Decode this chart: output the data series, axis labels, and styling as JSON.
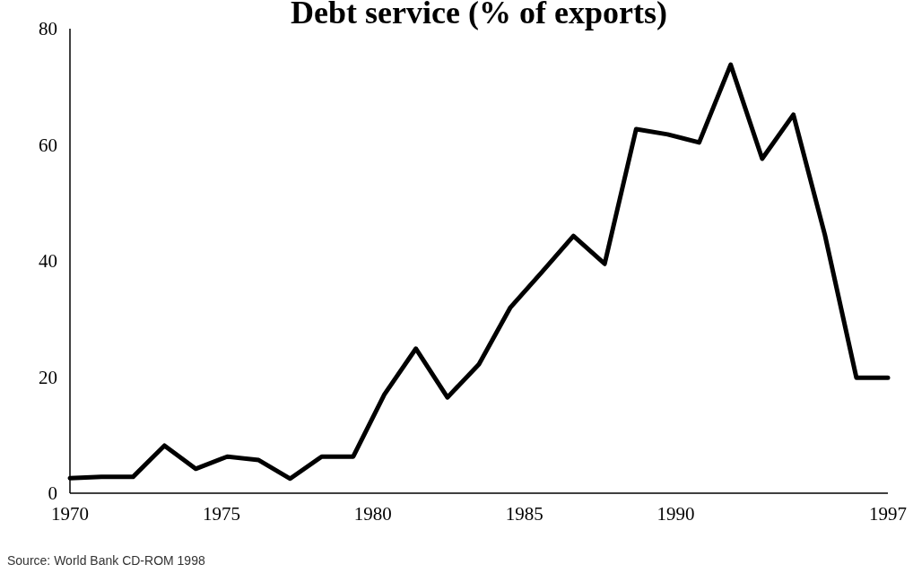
{
  "chart_data": {
    "type": "line",
    "title": "Debt service (% of exports)",
    "x": [
      1970,
      1971.04,
      1972.08,
      1973.12,
      1974.15,
      1975.19,
      1976.23,
      1977.27,
      1978.31,
      1979.35,
      1980.38,
      1981.42,
      1982.46,
      1983.5,
      1984.54,
      1985.58,
      1986.62,
      1987.65,
      1988.69,
      1989.73,
      1990.77,
      1991.81,
      1992.85,
      1993.88,
      1994.92,
      1995.96,
      1997
    ],
    "series": [
      {
        "color": "#000000",
        "values": [
          2.6,
          2.8,
          2.8,
          8.2,
          4.2,
          6.3,
          5.7,
          2.5,
          6.3,
          6.3,
          17.0,
          24.9,
          16.5,
          22.2,
          32.0,
          38.1,
          44.3,
          39.5,
          62.7,
          61.8,
          60.4,
          73.8,
          57.6,
          65.2,
          44.5,
          19.9,
          19.9
        ]
      }
    ],
    "xlim": [
      1970,
      1997
    ],
    "xticks": [
      1970,
      1975,
      1980,
      1985,
      1990,
      1997
    ],
    "ylim": [
      0,
      80
    ],
    "yticks": [
      0,
      20,
      40,
      60,
      80
    ],
    "grid": false,
    "marker": "none",
    "line_style": "solid",
    "annotations": [
      "Source: World Bank CD-ROM 1998"
    ]
  }
}
